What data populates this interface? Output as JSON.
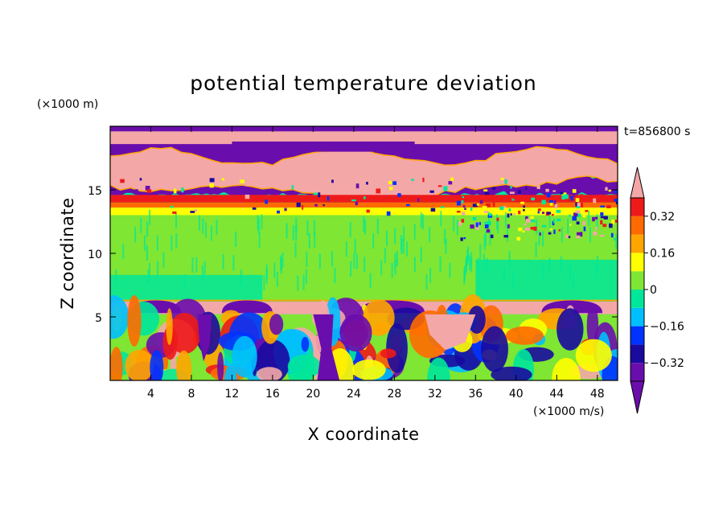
{
  "chart_data": {
    "type": "heatmap",
    "title": "potential temperature deviation",
    "xlabel": "X coordinate",
    "ylabel": "Z coordinate",
    "x_unit": "(×1000 m/s)",
    "y_unit": "(×1000 m)",
    "time_label": "t=856800 s",
    "xlim": [
      0,
      50
    ],
    "ylim": [
      0,
      20
    ],
    "x_ticks": [
      4,
      8,
      12,
      16,
      20,
      24,
      28,
      32,
      36,
      40,
      44,
      48
    ],
    "y_ticks": [
      5,
      10,
      15
    ],
    "colorbar": {
      "levels": [
        -0.4,
        -0.32,
        -0.24,
        -0.16,
        -0.08,
        0,
        0.08,
        0.16,
        0.24,
        0.32,
        0.4
      ],
      "tick_labels": [
        "0.32",
        "0.16",
        "0",
        "−0.16",
        "−0.32"
      ],
      "tick_values": [
        0.32,
        0.16,
        0,
        -0.16,
        -0.32
      ],
      "colors": [
        "#6a0dad",
        "#1a0a9e",
        "#0033ff",
        "#00bfff",
        "#00e69a",
        "#7fe633",
        "#ffff00",
        "#ffa500",
        "#ff6a00",
        "#ee1a1a",
        "#f4a7a7"
      ],
      "extend": "both"
    },
    "layers": [
      {
        "z_range": [
          16.2,
          20
        ],
        "value": -0.45,
        "note": "upper purple layer"
      },
      {
        "z_range": [
          15.2,
          18.5
        ],
        "value": 0.45,
        "note": "pink plume"
      },
      {
        "z_range": [
          14.0,
          14.6
        ],
        "value": 0.32
      },
      {
        "z_range": [
          13.6,
          14.0
        ],
        "value": 0.25
      },
      {
        "z_range": [
          12.7,
          13.5
        ],
        "value": 0.12
      },
      {
        "z_range": [
          6.3,
          12.5
        ],
        "value": 0.0
      },
      {
        "z_range": [
          5.2,
          6.2
        ],
        "value": 0.45
      },
      {
        "z_range": [
          0,
          5.2
        ],
        "value": 0.0,
        "note": "turbulent mixed layer"
      }
    ]
  },
  "colors": {
    "purple": "#6a0dad",
    "navy": "#1a0a9e",
    "blue": "#0033ff",
    "cyan": "#00bfff",
    "seagreen": "#00e69a",
    "green": "#7fe633",
    "yellow": "#ffff00",
    "orange": "#ffa500",
    "darkorange": "#ff6a00",
    "red": "#ee1a1a",
    "pink": "#f4a7a7"
  }
}
